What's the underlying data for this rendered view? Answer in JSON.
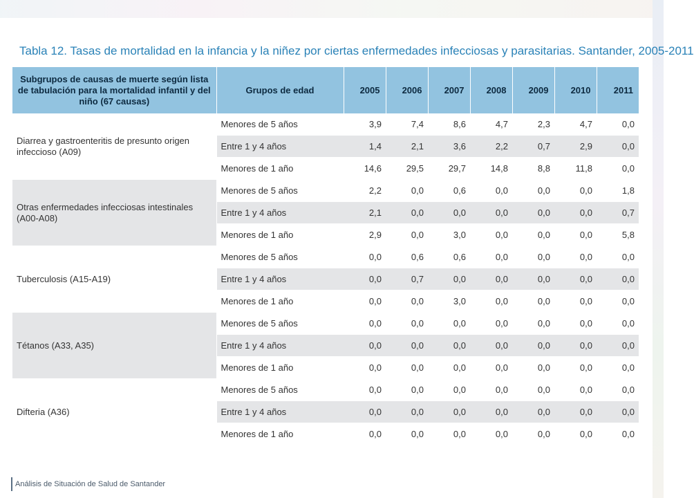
{
  "title": "Tabla 12. Tasas de mortalidad en la infancia y la niñez por ciertas enfermedades infecciosas y parasitarias. Santander, 2005-2011",
  "table": {
    "headers": {
      "cause": "Subgrupos de causas de muerte según lista de tabulación para la mortalidad infantil y del niño (67 causas)",
      "age": "Grupos de edad",
      "years": [
        "2005",
        "2006",
        "2007",
        "2008",
        "2009",
        "2010",
        "2011"
      ]
    },
    "groups": [
      {
        "cause": "Diarrea y gastroenteritis de presunto origen infeccioso (A09)",
        "rows": [
          {
            "age": "Menores de 5 años",
            "values": [
              "3,9",
              "7,4",
              "8,6",
              "4,7",
              "2,3",
              "4,7",
              "0,0"
            ]
          },
          {
            "age": "Entre 1 y 4 años",
            "values": [
              "1,4",
              "2,1",
              "3,6",
              "2,2",
              "0,7",
              "2,9",
              "0,0"
            ]
          },
          {
            "age": "Menores de 1 año",
            "values": [
              "14,6",
              "29,5",
              "29,7",
              "14,8",
              "8,8",
              "11,8",
              "0,0"
            ]
          }
        ]
      },
      {
        "cause": "Otras enfermedades infecciosas intestinales (A00-A08)",
        "rows": [
          {
            "age": "Menores de 5 años",
            "values": [
              "2,2",
              "0,0",
              "0,6",
              "0,0",
              "0,0",
              "0,0",
              "1,8"
            ]
          },
          {
            "age": "Entre 1 y 4 años",
            "values": [
              "2,1",
              "0,0",
              "0,0",
              "0,0",
              "0,0",
              "0,0",
              "0,7"
            ]
          },
          {
            "age": "Menores de 1 año",
            "values": [
              "2,9",
              "0,0",
              "3,0",
              "0,0",
              "0,0",
              "0,0",
              "5,8"
            ]
          }
        ]
      },
      {
        "cause": "Tuberculosis (A15-A19)",
        "rows": [
          {
            "age": "Menores de 5 años",
            "values": [
              "0,0",
              "0,6",
              "0,6",
              "0,0",
              "0,0",
              "0,0",
              "0,0"
            ]
          },
          {
            "age": "Entre 1 y 4 años",
            "values": [
              "0,0",
              "0,7",
              "0,0",
              "0,0",
              "0,0",
              "0,0",
              "0,0"
            ]
          },
          {
            "age": "Menores de 1 año",
            "values": [
              "0,0",
              "0,0",
              "3,0",
              "0,0",
              "0,0",
              "0,0",
              "0,0"
            ]
          }
        ]
      },
      {
        "cause": "Tétanos (A33, A35)",
        "rows": [
          {
            "age": "Menores de 5 años",
            "values": [
              "0,0",
              "0,0",
              "0,0",
              "0,0",
              "0,0",
              "0,0",
              "0,0"
            ]
          },
          {
            "age": "Entre 1 y 4 años",
            "values": [
              "0,0",
              "0,0",
              "0,0",
              "0,0",
              "0,0",
              "0,0",
              "0,0"
            ]
          },
          {
            "age": "Menores de 1 año",
            "values": [
              "0,0",
              "0,0",
              "0,0",
              "0,0",
              "0,0",
              "0,0",
              "0,0"
            ]
          }
        ]
      },
      {
        "cause": "Difteria (A36)",
        "rows": [
          {
            "age": "Menores de 5 años",
            "values": [
              "0,0",
              "0,0",
              "0,0",
              "0,0",
              "0,0",
              "0,0",
              "0,0"
            ]
          },
          {
            "age": "Entre 1 y 4 años",
            "values": [
              "0,0",
              "0,0",
              "0,0",
              "0,0",
              "0,0",
              "0,0",
              "0,0"
            ]
          },
          {
            "age": "Menores de 1 año",
            "values": [
              "0,0",
              "0,0",
              "0,0",
              "0,0",
              "0,0",
              "0,0",
              "0,0"
            ]
          }
        ]
      }
    ]
  },
  "footer": "Análisis de Situación de Salud de Santander",
  "colors": {
    "title": "#2a82b7",
    "header_bg": "#92c3e0",
    "stripe": "#e4e5e7"
  }
}
